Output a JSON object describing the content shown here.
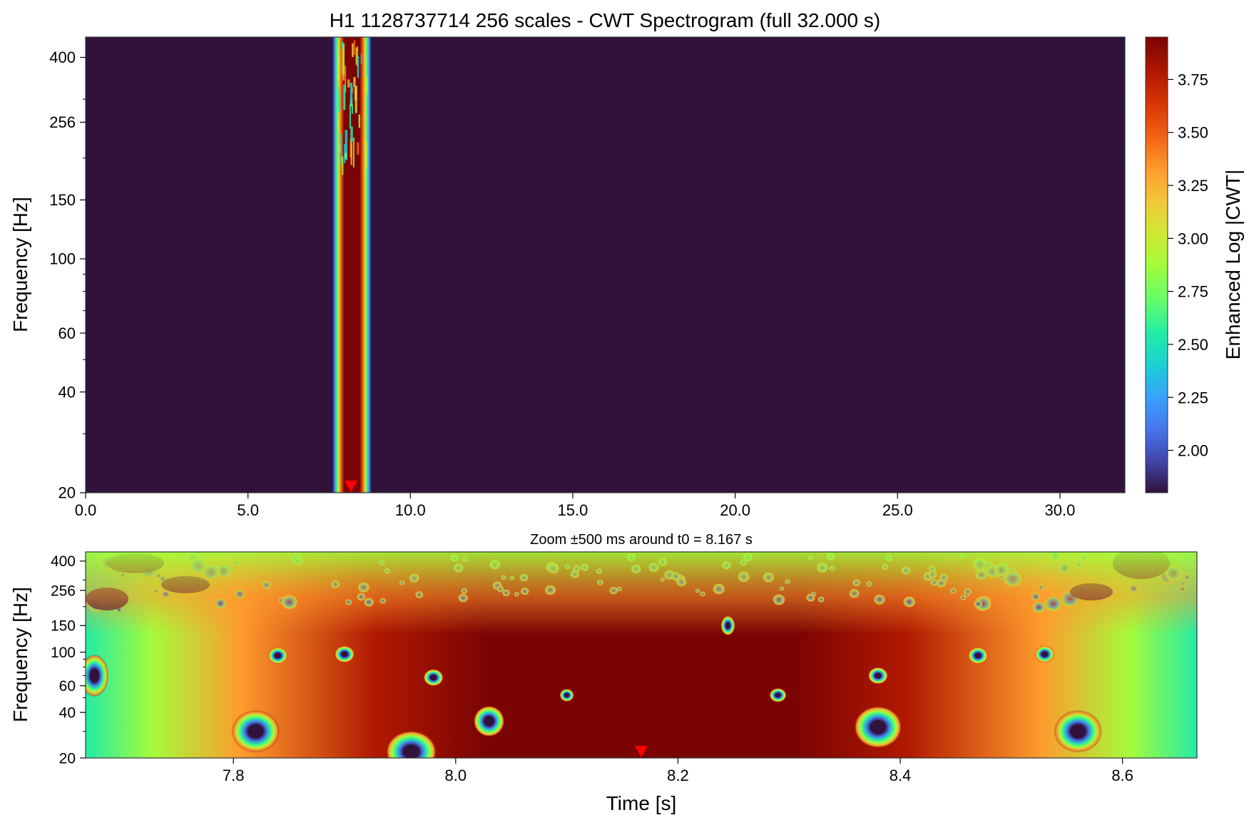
{
  "chart_data": [
    {
      "type": "heatmap",
      "title": "H1 1128737714 256 scales - CWT Spectrogram (full 32.000 s)",
      "xlabel": "",
      "ylabel": "Frequency [Hz]",
      "xlim": [
        0,
        32
      ],
      "ylim": [
        20,
        460
      ],
      "yscale": "log",
      "x_ticks": [
        0,
        5,
        10,
        15,
        20,
        25,
        30
      ],
      "x_tick_labels": [
        "0.0",
        "5.0",
        "10.0",
        "15.0",
        "20.0",
        "25.0",
        "30.0"
      ],
      "y_ticks": [
        20,
        40,
        60,
        100,
        150,
        256,
        400
      ],
      "y_tick_labels": [
        "20",
        "40",
        "60",
        "100",
        "150",
        "256",
        "400"
      ],
      "burst_time_range": [
        7.6,
        8.8
      ],
      "burst_peak_range": [
        7.9,
        8.5
      ],
      "marker_time": 8.167,
      "marker_color": "#ff0000",
      "background_value": 1.8,
      "peak_value": 3.95
    },
    {
      "type": "heatmap",
      "title": "Zoom ±500 ms around t0 = 8.167 s",
      "xlabel": "Time [s]",
      "ylabel": "Frequency [Hz]",
      "xlim": [
        7.667,
        8.667
      ],
      "ylim": [
        20,
        460
      ],
      "yscale": "log",
      "x_ticks": [
        7.8,
        8.0,
        8.2,
        8.4,
        8.6
      ],
      "x_tick_labels": [
        "7.8",
        "8.0",
        "8.2",
        "8.4",
        "8.6"
      ],
      "y_ticks": [
        20,
        40,
        60,
        100,
        150,
        256,
        400
      ],
      "y_tick_labels": [
        "20",
        "40",
        "60",
        "100",
        "150",
        "256",
        "400"
      ],
      "marker_time": 8.167,
      "marker_color": "#ff0000"
    }
  ],
  "colorbar": {
    "label": "Enhanced Log |CWT|",
    "vmin": 1.8,
    "vmax": 3.95,
    "ticks": [
      2.0,
      2.25,
      2.5,
      2.75,
      3.0,
      3.25,
      3.5,
      3.75
    ],
    "tick_labels": [
      "2.00",
      "2.25",
      "2.50",
      "2.75",
      "3.00",
      "3.25",
      "3.50",
      "3.75"
    ],
    "colormap": "turbo"
  }
}
